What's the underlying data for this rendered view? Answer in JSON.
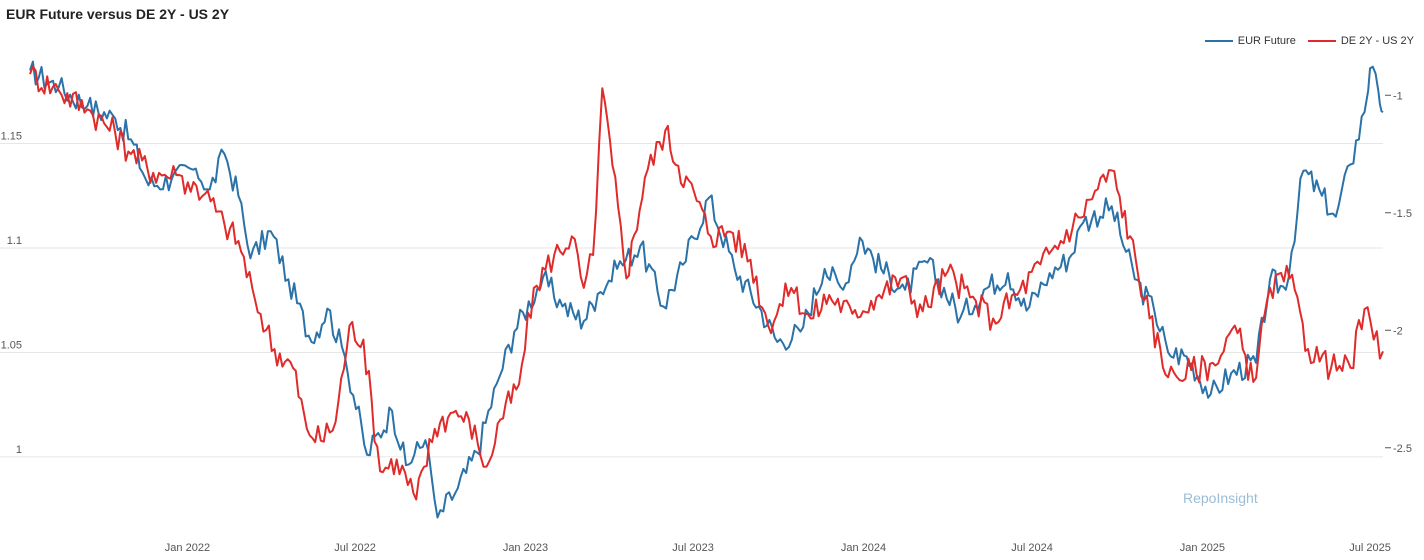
{
  "colors": {
    "eur": "#2a72a8",
    "spread": "#e02b2b",
    "grid": "#e6e6e6"
  },
  "watermark": "RepoInsight",
  "chart_data": {
    "type": "line",
    "title": "EUR Future versus DE 2Y - US 2Y",
    "legend": [
      "EUR Future",
      "DE 2Y - US 2Y"
    ],
    "legend_position": "top-right",
    "grid": true,
    "x_ticks": [
      "Jan 2022",
      "Jul 2022",
      "Jan 2023",
      "Jul 2023",
      "Jan 2024",
      "Jul 2024",
      "Jan 2025",
      "Jul 2025"
    ],
    "x_range": [
      "2021-07-15",
      "2025-07-15"
    ],
    "y_left": {
      "range": [
        0.965,
        1.19
      ],
      "ticks": [
        1,
        1.05,
        1.1,
        1.15
      ],
      "tick_labels": [
        "1",
        "1.05",
        "1.1",
        "1.15"
      ]
    },
    "y_right": {
      "range": [
        -2.85,
        -0.85
      ],
      "ticks": [
        -2.5,
        -2,
        -1.5,
        -1
      ],
      "tick_labels": [
        "-2.5",
        "-2",
        "-1.5",
        "-1"
      ]
    },
    "series": [
      {
        "name": "EUR Future",
        "axis": "left",
        "points": [
          [
            "2021-07-15",
            1.185
          ],
          [
            "2021-08-15",
            1.177
          ],
          [
            "2021-09-15",
            1.168
          ],
          [
            "2021-10-15",
            1.162
          ],
          [
            "2021-11-01",
            1.152
          ],
          [
            "2021-11-20",
            1.13
          ],
          [
            "2021-12-15",
            1.133
          ],
          [
            "2022-01-10",
            1.138
          ],
          [
            "2022-01-25",
            1.128
          ],
          [
            "2022-02-10",
            1.145
          ],
          [
            "2022-02-25",
            1.125
          ],
          [
            "2022-03-10",
            1.095
          ],
          [
            "2022-04-01",
            1.108
          ],
          [
            "2022-04-20",
            1.085
          ],
          [
            "2022-05-15",
            1.055
          ],
          [
            "2022-06-01",
            1.071
          ],
          [
            "2022-06-20",
            1.048
          ],
          [
            "2022-07-14",
            1.001
          ],
          [
            "2022-08-10",
            1.022
          ],
          [
            "2022-08-25",
            0.996
          ],
          [
            "2022-09-15",
            1.008
          ],
          [
            "2022-09-28",
            0.971
          ],
          [
            "2022-10-20",
            0.985
          ],
          [
            "2022-11-10",
            1.002
          ],
          [
            "2022-12-01",
            1.035
          ],
          [
            "2022-12-20",
            1.06
          ],
          [
            "2023-01-20",
            1.086
          ],
          [
            "2023-02-10",
            1.072
          ],
          [
            "2023-03-05",
            1.065
          ],
          [
            "2023-03-20",
            1.078
          ],
          [
            "2023-04-10",
            1.09
          ],
          [
            "2023-05-05",
            1.101
          ],
          [
            "2023-05-30",
            1.072
          ],
          [
            "2023-06-20",
            1.092
          ],
          [
            "2023-07-18",
            1.124
          ],
          [
            "2023-08-15",
            1.09
          ],
          [
            "2023-09-10",
            1.072
          ],
          [
            "2023-09-30",
            1.055
          ],
          [
            "2023-10-25",
            1.06
          ],
          [
            "2023-11-20",
            1.09
          ],
          [
            "2023-12-10",
            1.08
          ],
          [
            "2023-12-28",
            1.105
          ],
          [
            "2024-01-20",
            1.09
          ],
          [
            "2024-02-15",
            1.08
          ],
          [
            "2024-03-10",
            1.093
          ],
          [
            "2024-04-15",
            1.067
          ],
          [
            "2024-05-10",
            1.08
          ],
          [
            "2024-06-05",
            1.088
          ],
          [
            "2024-06-25",
            1.07
          ],
          [
            "2024-07-20",
            1.088
          ],
          [
            "2024-08-10",
            1.095
          ],
          [
            "2024-08-25",
            1.112
          ],
          [
            "2024-09-25",
            1.12
          ],
          [
            "2024-10-20",
            1.085
          ],
          [
            "2024-11-10",
            1.07
          ],
          [
            "2024-11-25",
            1.05
          ],
          [
            "2024-12-15",
            1.048
          ],
          [
            "2025-01-10",
            1.03
          ],
          [
            "2025-02-01",
            1.04
          ],
          [
            "2025-02-28",
            1.045
          ],
          [
            "2025-03-15",
            1.085
          ],
          [
            "2025-04-01",
            1.08
          ],
          [
            "2025-04-20",
            1.137
          ],
          [
            "2025-05-10",
            1.125
          ],
          [
            "2025-05-25",
            1.115
          ],
          [
            "2025-06-10",
            1.14
          ],
          [
            "2025-06-25",
            1.165
          ],
          [
            "2025-07-01",
            1.186
          ],
          [
            "2025-07-10",
            1.175
          ],
          [
            "2025-07-15",
            1.165
          ]
        ]
      },
      {
        "name": "DE 2Y - US 2Y",
        "axis": "right",
        "points": [
          [
            "2021-07-15",
            -0.91
          ],
          [
            "2021-08-15",
            -0.98
          ],
          [
            "2021-09-15",
            -1.06
          ],
          [
            "2021-10-15",
            -1.16
          ],
          [
            "2021-11-01",
            -1.25
          ],
          [
            "2021-11-25",
            -1.33
          ],
          [
            "2021-12-20",
            -1.34
          ],
          [
            "2022-01-20",
            -1.42
          ],
          [
            "2022-02-10",
            -1.55
          ],
          [
            "2022-02-25",
            -1.62
          ],
          [
            "2022-03-15",
            -1.87
          ],
          [
            "2022-04-05",
            -2.08
          ],
          [
            "2022-04-25",
            -2.16
          ],
          [
            "2022-05-10",
            -2.42
          ],
          [
            "2022-05-25",
            -2.47
          ],
          [
            "2022-06-10",
            -2.39
          ],
          [
            "2022-06-25",
            -1.98
          ],
          [
            "2022-07-10",
            -2.04
          ],
          [
            "2022-07-28",
            -2.6
          ],
          [
            "2022-08-15",
            -2.55
          ],
          [
            "2022-09-05",
            -2.72
          ],
          [
            "2022-09-25",
            -2.42
          ],
          [
            "2022-10-15",
            -2.35
          ],
          [
            "2022-11-01",
            -2.38
          ],
          [
            "2022-11-20",
            -2.58
          ],
          [
            "2022-12-05",
            -2.38
          ],
          [
            "2022-12-25",
            -2.23
          ],
          [
            "2023-01-10",
            -1.82
          ],
          [
            "2023-02-01",
            -1.68
          ],
          [
            "2023-02-20",
            -1.6
          ],
          [
            "2023-03-05",
            -1.82
          ],
          [
            "2023-03-15",
            -1.68
          ],
          [
            "2023-03-25",
            -0.97
          ],
          [
            "2023-04-05",
            -1.3
          ],
          [
            "2023-04-20",
            -1.78
          ],
          [
            "2023-05-10",
            -1.35
          ],
          [
            "2023-06-01",
            -1.15
          ],
          [
            "2023-06-15",
            -1.3
          ],
          [
            "2023-07-05",
            -1.45
          ],
          [
            "2023-07-20",
            -1.6
          ],
          [
            "2023-08-10",
            -1.58
          ],
          [
            "2023-09-01",
            -1.7
          ],
          [
            "2023-09-20",
            -1.98
          ],
          [
            "2023-10-15",
            -1.82
          ],
          [
            "2023-11-05",
            -1.95
          ],
          [
            "2023-11-25",
            -1.85
          ],
          [
            "2023-12-20",
            -1.93
          ],
          [
            "2024-01-15",
            -1.86
          ],
          [
            "2024-02-10",
            -1.78
          ],
          [
            "2024-03-05",
            -1.92
          ],
          [
            "2024-04-01",
            -1.75
          ],
          [
            "2024-04-25",
            -1.86
          ],
          [
            "2024-05-20",
            -1.95
          ],
          [
            "2024-06-15",
            -1.85
          ],
          [
            "2024-07-10",
            -1.72
          ],
          [
            "2024-08-01",
            -1.62
          ],
          [
            "2024-08-20",
            -1.52
          ],
          [
            "2024-09-10",
            -1.4
          ],
          [
            "2024-09-25",
            -1.32
          ],
          [
            "2024-10-15",
            -1.6
          ],
          [
            "2024-11-05",
            -1.95
          ],
          [
            "2024-11-25",
            -2.2
          ],
          [
            "2024-12-20",
            -2.17
          ],
          [
            "2025-01-15",
            -2.15
          ],
          [
            "2025-02-05",
            -1.98
          ],
          [
            "2025-02-25",
            -2.22
          ],
          [
            "2025-03-15",
            -1.82
          ],
          [
            "2025-04-05",
            -1.78
          ],
          [
            "2025-04-25",
            -2.08
          ],
          [
            "2025-05-20",
            -2.16
          ],
          [
            "2025-06-10",
            -2.16
          ],
          [
            "2025-06-25",
            -1.91
          ],
          [
            "2025-07-05",
            -2.04
          ],
          [
            "2025-07-15",
            -2.09
          ]
        ]
      }
    ]
  }
}
